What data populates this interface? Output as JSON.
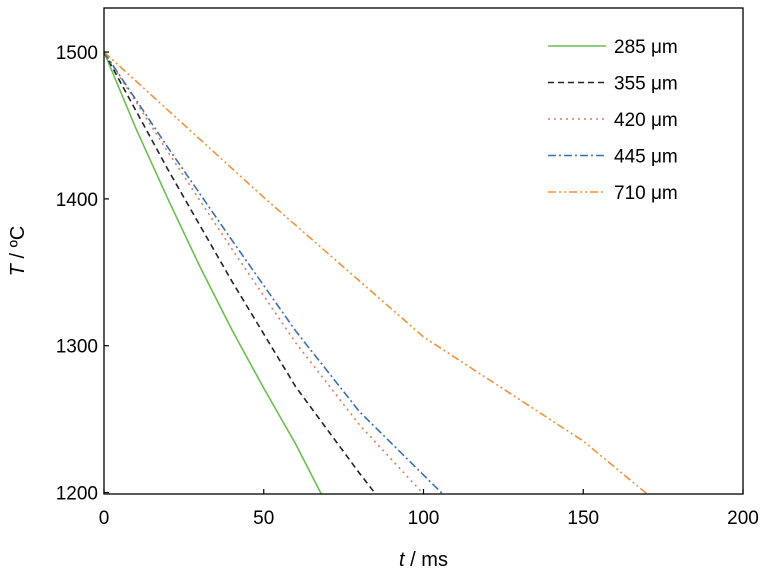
{
  "chart_data": {
    "type": "line",
    "title": "",
    "xlabel": {
      "symbol": "t",
      "unit": " / ms"
    },
    "ylabel": {
      "symbol": "T",
      "unit": " / ºC"
    },
    "xlim": [
      0,
      200
    ],
    "ylim": [
      1199,
      1530
    ],
    "xticks": [
      0,
      50,
      100,
      150,
      200
    ],
    "yticks": [
      1200,
      1300,
      1400,
      1500
    ],
    "grid": false,
    "legend_position": "top-right",
    "series": [
      {
        "name": "285 μm",
        "color": "#6cbf4f",
        "dash": "solid",
        "x": [
          0,
          10,
          20,
          30,
          40,
          50,
          60,
          68
        ],
        "y": [
          1500,
          1448,
          1400,
          1354,
          1311,
          1271,
          1233,
          1199
        ]
      },
      {
        "name": "355 μm",
        "color": "#222222",
        "dash": "dashed",
        "x": [
          0,
          20,
          40,
          60,
          80,
          85
        ],
        "y": [
          1500,
          1420,
          1344,
          1272,
          1213,
          1199
        ]
      },
      {
        "name": "420 μm",
        "color": "#e07b5a",
        "dash": "dotted",
        "x": [
          0,
          20,
          40,
          60,
          80,
          100
        ],
        "y": [
          1500,
          1432,
          1366,
          1302,
          1246,
          1199
        ]
      },
      {
        "name": "445 μm",
        "color": "#3d6fb0",
        "dash": "dashdot",
        "x": [
          0,
          20,
          40,
          60,
          80,
          106
        ],
        "y": [
          1500,
          1435,
          1372,
          1310,
          1255,
          1199
        ]
      },
      {
        "name": "710 μm",
        "color": "#f0923a",
        "dash": "dashdotdot",
        "x": [
          0,
          50,
          100,
          150,
          170
        ],
        "y": [
          1500,
          1401,
          1306,
          1235,
          1199
        ]
      }
    ]
  }
}
